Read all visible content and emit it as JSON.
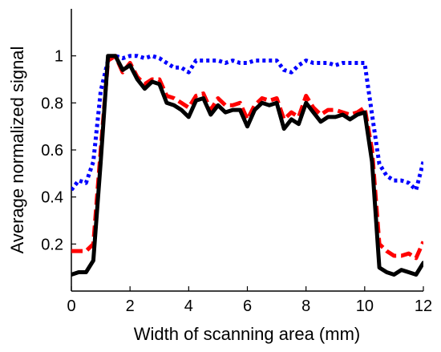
{
  "chart_data": {
    "type": "line",
    "title": "",
    "xlabel": "Width of scanning area (mm)",
    "ylabel": "Average normalized signal",
    "xlim": [
      0,
      12
    ],
    "ylim": [
      0,
      1.2
    ],
    "xticks": [
      0,
      2,
      4,
      6,
      8,
      10,
      12
    ],
    "xtick_labels": [
      "0",
      "2",
      "4",
      "6",
      "8",
      "10",
      "12"
    ],
    "yticks": [
      0.2,
      0.4,
      0.6,
      0.8,
      1
    ],
    "ytick_labels": [
      "0.2",
      "0.4",
      "0.6",
      "0.8",
      "1"
    ],
    "grid": false,
    "legend": "none",
    "series": [
      {
        "color": "#0000ff",
        "style": "dotted",
        "x": [
          0,
          0.25,
          0.5,
          0.75,
          1,
          1.25,
          1.5,
          1.75,
          2,
          2.25,
          2.5,
          2.75,
          3,
          3.25,
          3.5,
          3.75,
          4,
          4.25,
          4.5,
          4.75,
          5,
          5.25,
          5.5,
          5.75,
          6,
          6.25,
          6.5,
          6.75,
          7,
          7.25,
          7.5,
          7.75,
          8,
          8.25,
          8.5,
          8.75,
          9,
          9.25,
          9.5,
          9.75,
          10,
          10.25,
          10.5,
          10.75,
          11,
          11.25,
          11.5,
          11.75,
          12
        ],
        "y": [
          0.43,
          0.47,
          0.46,
          0.55,
          0.85,
          0.98,
          1.0,
          0.99,
          1.0,
          1.0,
          0.99,
          1.0,
          0.99,
          0.97,
          0.95,
          0.95,
          0.93,
          0.98,
          0.98,
          0.98,
          0.98,
          0.97,
          0.98,
          0.97,
          0.97,
          0.98,
          0.98,
          0.98,
          0.98,
          0.94,
          0.93,
          0.96,
          0.98,
          0.97,
          0.97,
          0.97,
          0.96,
          0.97,
          0.97,
          0.97,
          0.97,
          0.75,
          0.54,
          0.49,
          0.47,
          0.47,
          0.46,
          0.43,
          0.55
        ]
      },
      {
        "color": "#ff0000",
        "style": "dashed",
        "x": [
          0,
          0.25,
          0.5,
          0.75,
          1,
          1.25,
          1.5,
          1.75,
          2,
          2.25,
          2.5,
          2.75,
          3,
          3.25,
          3.5,
          3.75,
          4,
          4.25,
          4.5,
          4.75,
          5,
          5.25,
          5.5,
          5.75,
          6,
          6.25,
          6.5,
          6.75,
          7,
          7.25,
          7.5,
          7.75,
          8,
          8.25,
          8.5,
          8.75,
          9,
          9.25,
          9.5,
          9.75,
          10,
          10.25,
          10.5,
          10.75,
          11,
          11.25,
          11.5,
          11.75,
          12
        ],
        "y": [
          0.17,
          0.17,
          0.17,
          0.2,
          0.6,
          0.98,
          1.0,
          0.93,
          0.97,
          0.91,
          0.88,
          0.9,
          0.9,
          0.83,
          0.82,
          0.8,
          0.78,
          0.83,
          0.84,
          0.77,
          0.82,
          0.79,
          0.79,
          0.8,
          0.73,
          0.79,
          0.82,
          0.81,
          0.82,
          0.73,
          0.76,
          0.74,
          0.83,
          0.78,
          0.75,
          0.77,
          0.77,
          0.76,
          0.75,
          0.76,
          0.78,
          0.6,
          0.2,
          0.17,
          0.15,
          0.15,
          0.16,
          0.14,
          0.21
        ]
      },
      {
        "color": "#000000",
        "style": "solid",
        "x": [
          0,
          0.25,
          0.5,
          0.75,
          1,
          1.25,
          1.5,
          1.75,
          2,
          2.25,
          2.5,
          2.75,
          3,
          3.25,
          3.5,
          3.75,
          4,
          4.25,
          4.5,
          4.75,
          5,
          5.25,
          5.5,
          5.75,
          6,
          6.25,
          6.5,
          6.75,
          7,
          7.25,
          7.5,
          7.75,
          8,
          8.25,
          8.5,
          8.75,
          9,
          9.25,
          9.5,
          9.75,
          10,
          10.25,
          10.5,
          10.75,
          11,
          11.25,
          11.5,
          11.75,
          12
        ],
        "y": [
          0.07,
          0.08,
          0.08,
          0.13,
          0.55,
          1.0,
          1.0,
          0.94,
          0.96,
          0.9,
          0.86,
          0.89,
          0.88,
          0.8,
          0.79,
          0.77,
          0.74,
          0.81,
          0.82,
          0.75,
          0.79,
          0.76,
          0.77,
          0.77,
          0.7,
          0.77,
          0.8,
          0.79,
          0.8,
          0.69,
          0.73,
          0.71,
          0.8,
          0.76,
          0.72,
          0.74,
          0.74,
          0.75,
          0.73,
          0.75,
          0.76,
          0.55,
          0.1,
          0.08,
          0.07,
          0.09,
          0.08,
          0.07,
          0.12
        ]
      }
    ]
  }
}
